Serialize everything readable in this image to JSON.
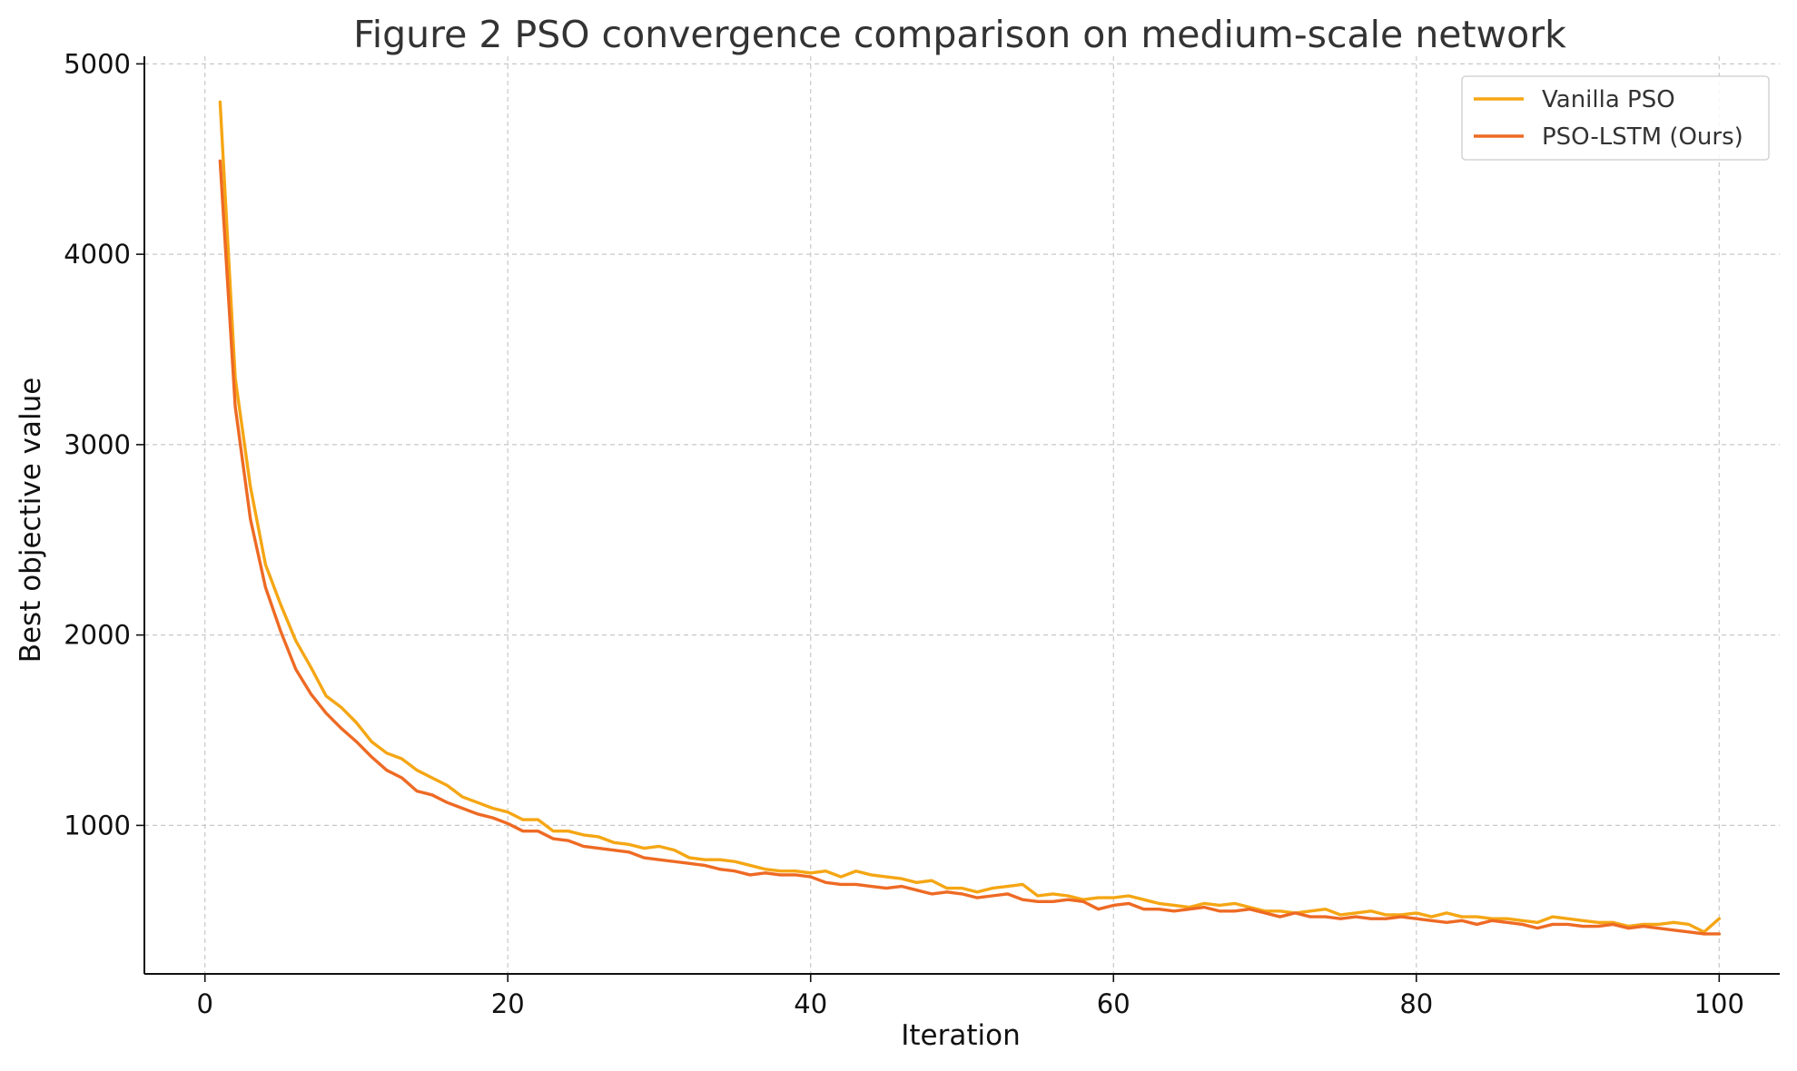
{
  "chart_data": {
    "type": "line",
    "title": "Figure 2  PSO convergence comparison on medium-scale network",
    "xlabel": "Iteration",
    "ylabel": "Best objective value",
    "xlim": [
      -4,
      104
    ],
    "ylim": [
      220,
      5040
    ],
    "xticks": [
      0,
      20,
      40,
      60,
      80,
      100
    ],
    "yticks": [
      1000,
      2000,
      3000,
      4000,
      5000
    ],
    "grid": true,
    "legend_position": "top-right",
    "x": [
      1,
      2,
      3,
      4,
      5,
      6,
      7,
      8,
      9,
      10,
      11,
      12,
      13,
      14,
      15,
      16,
      17,
      18,
      19,
      20,
      21,
      22,
      23,
      24,
      25,
      26,
      27,
      28,
      29,
      30,
      31,
      32,
      33,
      34,
      35,
      36,
      37,
      38,
      39,
      40,
      41,
      42,
      43,
      44,
      45,
      46,
      47,
      48,
      49,
      50,
      51,
      52,
      53,
      54,
      55,
      56,
      57,
      58,
      59,
      60,
      61,
      62,
      63,
      64,
      65,
      66,
      67,
      68,
      69,
      70,
      71,
      72,
      73,
      74,
      75,
      76,
      77,
      78,
      79,
      80,
      81,
      82,
      83,
      84,
      85,
      86,
      87,
      88,
      89,
      90,
      91,
      92,
      93,
      94,
      95,
      96,
      97,
      98,
      99,
      100
    ],
    "series": [
      {
        "name": "Vanilla PSO",
        "color": "#f5a614",
        "values": [
          4800,
          3350,
          2780,
          2370,
          2160,
          1970,
          1830,
          1680,
          1620,
          1540,
          1440,
          1380,
          1350,
          1290,
          1250,
          1210,
          1150,
          1120,
          1090,
          1070,
          1030,
          1030,
          970,
          970,
          950,
          940,
          910,
          900,
          880,
          890,
          870,
          830,
          820,
          820,
          810,
          790,
          770,
          760,
          760,
          750,
          760,
          730,
          760,
          740,
          730,
          720,
          700,
          710,
          670,
          670,
          650,
          670,
          680,
          690,
          630,
          640,
          630,
          610,
          620,
          620,
          630,
          610,
          590,
          580,
          570,
          590,
          580,
          590,
          570,
          550,
          550,
          540,
          550,
          560,
          530,
          540,
          550,
          530,
          530,
          540,
          520,
          540,
          520,
          520,
          510,
          510,
          500,
          490,
          520,
          510,
          500,
          490,
          490,
          470,
          480,
          480,
          490,
          480,
          440,
          510
        ]
      },
      {
        "name": "PSO-LSTM (Ours)",
        "color": "#ee6a24",
        "values": [
          4490,
          3200,
          2610,
          2250,
          2020,
          1820,
          1690,
          1590,
          1510,
          1440,
          1360,
          1290,
          1250,
          1180,
          1160,
          1120,
          1090,
          1060,
          1040,
          1010,
          970,
          970,
          930,
          920,
          890,
          880,
          870,
          860,
          830,
          820,
          810,
          800,
          790,
          770,
          760,
          740,
          750,
          740,
          740,
          730,
          700,
          690,
          690,
          680,
          670,
          680,
          660,
          640,
          650,
          640,
          620,
          630,
          640,
          610,
          600,
          600,
          610,
          600,
          560,
          580,
          590,
          560,
          560,
          550,
          560,
          570,
          550,
          550,
          560,
          540,
          520,
          540,
          520,
          520,
          510,
          520,
          510,
          510,
          520,
          510,
          500,
          490,
          500,
          480,
          500,
          490,
          480,
          460,
          480,
          480,
          470,
          470,
          480,
          460,
          470,
          460,
          450,
          440,
          430,
          430
        ]
      }
    ]
  }
}
